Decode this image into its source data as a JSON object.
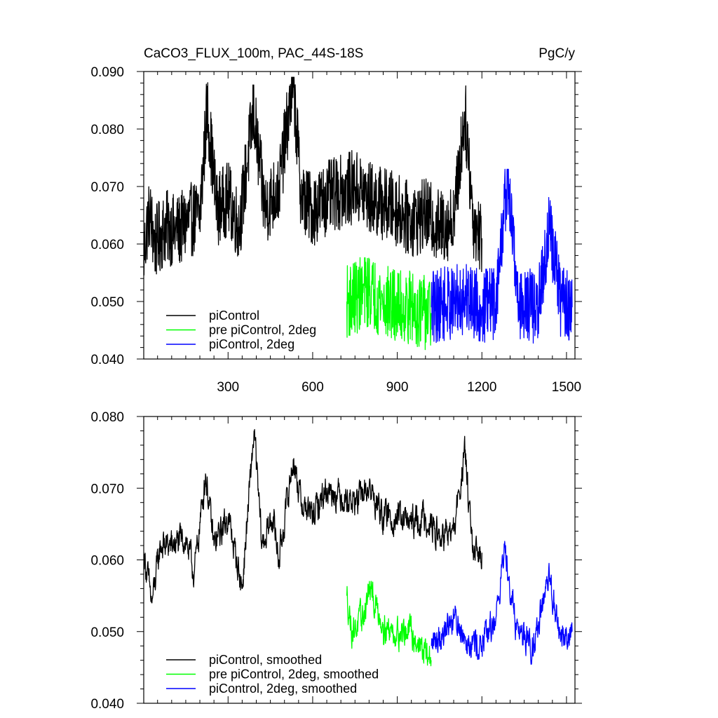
{
  "chart_data": [
    {
      "type": "line",
      "title": "CaCO3_FLUX_100m, PAC_44S-18S",
      "units": "PgC/y",
      "xlabel": "",
      "ylabel": "",
      "xlim": [
        1,
        1530
      ],
      "ylim": [
        0.04,
        0.09
      ],
      "xticks": [
        300,
        600,
        900,
        1200,
        1500
      ],
      "xtick_labels": [
        "300",
        "600",
        "900",
        "1200",
        "1500"
      ],
      "yticks": [
        0.04,
        0.05,
        0.06,
        0.07,
        0.08,
        0.09
      ],
      "ytick_labels": [
        "0.040",
        "0.050",
        "0.060",
        "0.070",
        "0.080",
        "0.090"
      ],
      "legend_position": "bottom-left",
      "series": [
        {
          "name": "piControl",
          "color": "#000000",
          "x_range": [
            1,
            1200
          ],
          "anchors": [
            [
              1,
              0.058
            ],
            [
              20,
              0.066
            ],
            [
              40,
              0.06
            ],
            [
              80,
              0.063
            ],
            [
              120,
              0.062
            ],
            [
              160,
              0.064
            ],
            [
              200,
              0.065
            ],
            [
              226,
              0.084
            ],
            [
              260,
              0.066
            ],
            [
              300,
              0.068
            ],
            [
              340,
              0.063
            ],
            [
              390,
              0.083
            ],
            [
              430,
              0.066
            ],
            [
              480,
              0.07
            ],
            [
              531,
              0.088
            ],
            [
              560,
              0.068
            ],
            [
              600,
              0.066
            ],
            [
              650,
              0.068
            ],
            [
              700,
              0.069
            ],
            [
              750,
              0.07
            ],
            [
              800,
              0.068
            ],
            [
              850,
              0.067
            ],
            [
              900,
              0.066
            ],
            [
              950,
              0.064
            ],
            [
              1000,
              0.065
            ],
            [
              1050,
              0.063
            ],
            [
              1100,
              0.064
            ],
            [
              1140,
              0.083
            ],
            [
              1170,
              0.064
            ],
            [
              1200,
              0.061
            ]
          ],
          "range": [
            0.051,
            0.089
          ]
        },
        {
          "name": "pre piControl, 2deg",
          "color": "#00ff00",
          "x_range": [
            721,
            1020
          ],
          "anchors": [
            [
              721,
              0.05
            ],
            [
              760,
              0.051
            ],
            [
              800,
              0.052
            ],
            [
              850,
              0.05
            ],
            [
              900,
              0.049
            ],
            [
              950,
              0.049
            ],
            [
              1000,
              0.048
            ],
            [
              1020,
              0.048
            ]
          ],
          "range": [
            0.041,
            0.063
          ]
        },
        {
          "name": "piControl, 2deg",
          "color": "#0000ff",
          "x_range": [
            1021,
            1520
          ],
          "anchors": [
            [
              1021,
              0.049
            ],
            [
              1100,
              0.05
            ],
            [
              1150,
              0.051
            ],
            [
              1200,
              0.049
            ],
            [
              1250,
              0.05
            ],
            [
              1290,
              0.072
            ],
            [
              1330,
              0.05
            ],
            [
              1400,
              0.049
            ],
            [
              1440,
              0.063
            ],
            [
              1480,
              0.05
            ],
            [
              1520,
              0.049
            ]
          ],
          "range": [
            0.041,
            0.073
          ]
        }
      ]
    },
    {
      "type": "line",
      "title": "",
      "xlabel": "",
      "ylabel": "",
      "xlim": [
        1,
        1530
      ],
      "ylim": [
        0.04,
        0.08
      ],
      "xticks": [
        300,
        600,
        900,
        1200,
        1500
      ],
      "xtick_labels": [],
      "yticks": [
        0.04,
        0.05,
        0.06,
        0.07,
        0.08
      ],
      "ytick_labels": [
        "0.040",
        "0.050",
        "0.060",
        "0.070",
        "0.080"
      ],
      "legend_position": "bottom-left",
      "series": [
        {
          "name": "piControl, smoothed",
          "color": "#000000",
          "x_range": [
            1,
            1200
          ],
          "anchors": [
            [
              1,
              0.061
            ],
            [
              30,
              0.054
            ],
            [
              60,
              0.062
            ],
            [
              100,
              0.062
            ],
            [
              150,
              0.063
            ],
            [
              180,
              0.058
            ],
            [
              220,
              0.072
            ],
            [
              250,
              0.062
            ],
            [
              300,
              0.066
            ],
            [
              330,
              0.06
            ],
            [
              350,
              0.056
            ],
            [
              392,
              0.078
            ],
            [
              420,
              0.062
            ],
            [
              460,
              0.066
            ],
            [
              480,
              0.06
            ],
            [
              531,
              0.074
            ],
            [
              560,
              0.068
            ],
            [
              600,
              0.066
            ],
            [
              650,
              0.07
            ],
            [
              700,
              0.069
            ],
            [
              750,
              0.068
            ],
            [
              800,
              0.07
            ],
            [
              850,
              0.066
            ],
            [
              900,
              0.066
            ],
            [
              950,
              0.065
            ],
            [
              1000,
              0.066
            ],
            [
              1050,
              0.063
            ],
            [
              1100,
              0.064
            ],
            [
              1140,
              0.075
            ],
            [
              1170,
              0.06
            ],
            [
              1200,
              0.061
            ]
          ],
          "range": [
            0.054,
            0.079
          ]
        },
        {
          "name": "pre piControl, 2deg, smoothed",
          "color": "#00ff00",
          "x_range": [
            721,
            1020
          ],
          "anchors": [
            [
              721,
              0.055
            ],
            [
              740,
              0.05
            ],
            [
              780,
              0.052
            ],
            [
              800,
              0.056
            ],
            [
              850,
              0.051
            ],
            [
              880,
              0.05
            ],
            [
              950,
              0.05
            ],
            [
              980,
              0.048
            ],
            [
              1020,
              0.046
            ]
          ],
          "range": [
            0.045,
            0.057
          ]
        },
        {
          "name": "piControl, 2deg, smoothed",
          "color": "#0000ff",
          "x_range": [
            1021,
            1520
          ],
          "anchors": [
            [
              1021,
              0.048
            ],
            [
              1060,
              0.05
            ],
            [
              1100,
              0.052
            ],
            [
              1150,
              0.049
            ],
            [
              1200,
              0.048
            ],
            [
              1250,
              0.052
            ],
            [
              1282,
              0.062
            ],
            [
              1320,
              0.051
            ],
            [
              1380,
              0.048
            ],
            [
              1440,
              0.057
            ],
            [
              1480,
              0.049
            ],
            [
              1520,
              0.05
            ]
          ],
          "range": [
            0.045,
            0.063
          ]
        }
      ]
    }
  ]
}
